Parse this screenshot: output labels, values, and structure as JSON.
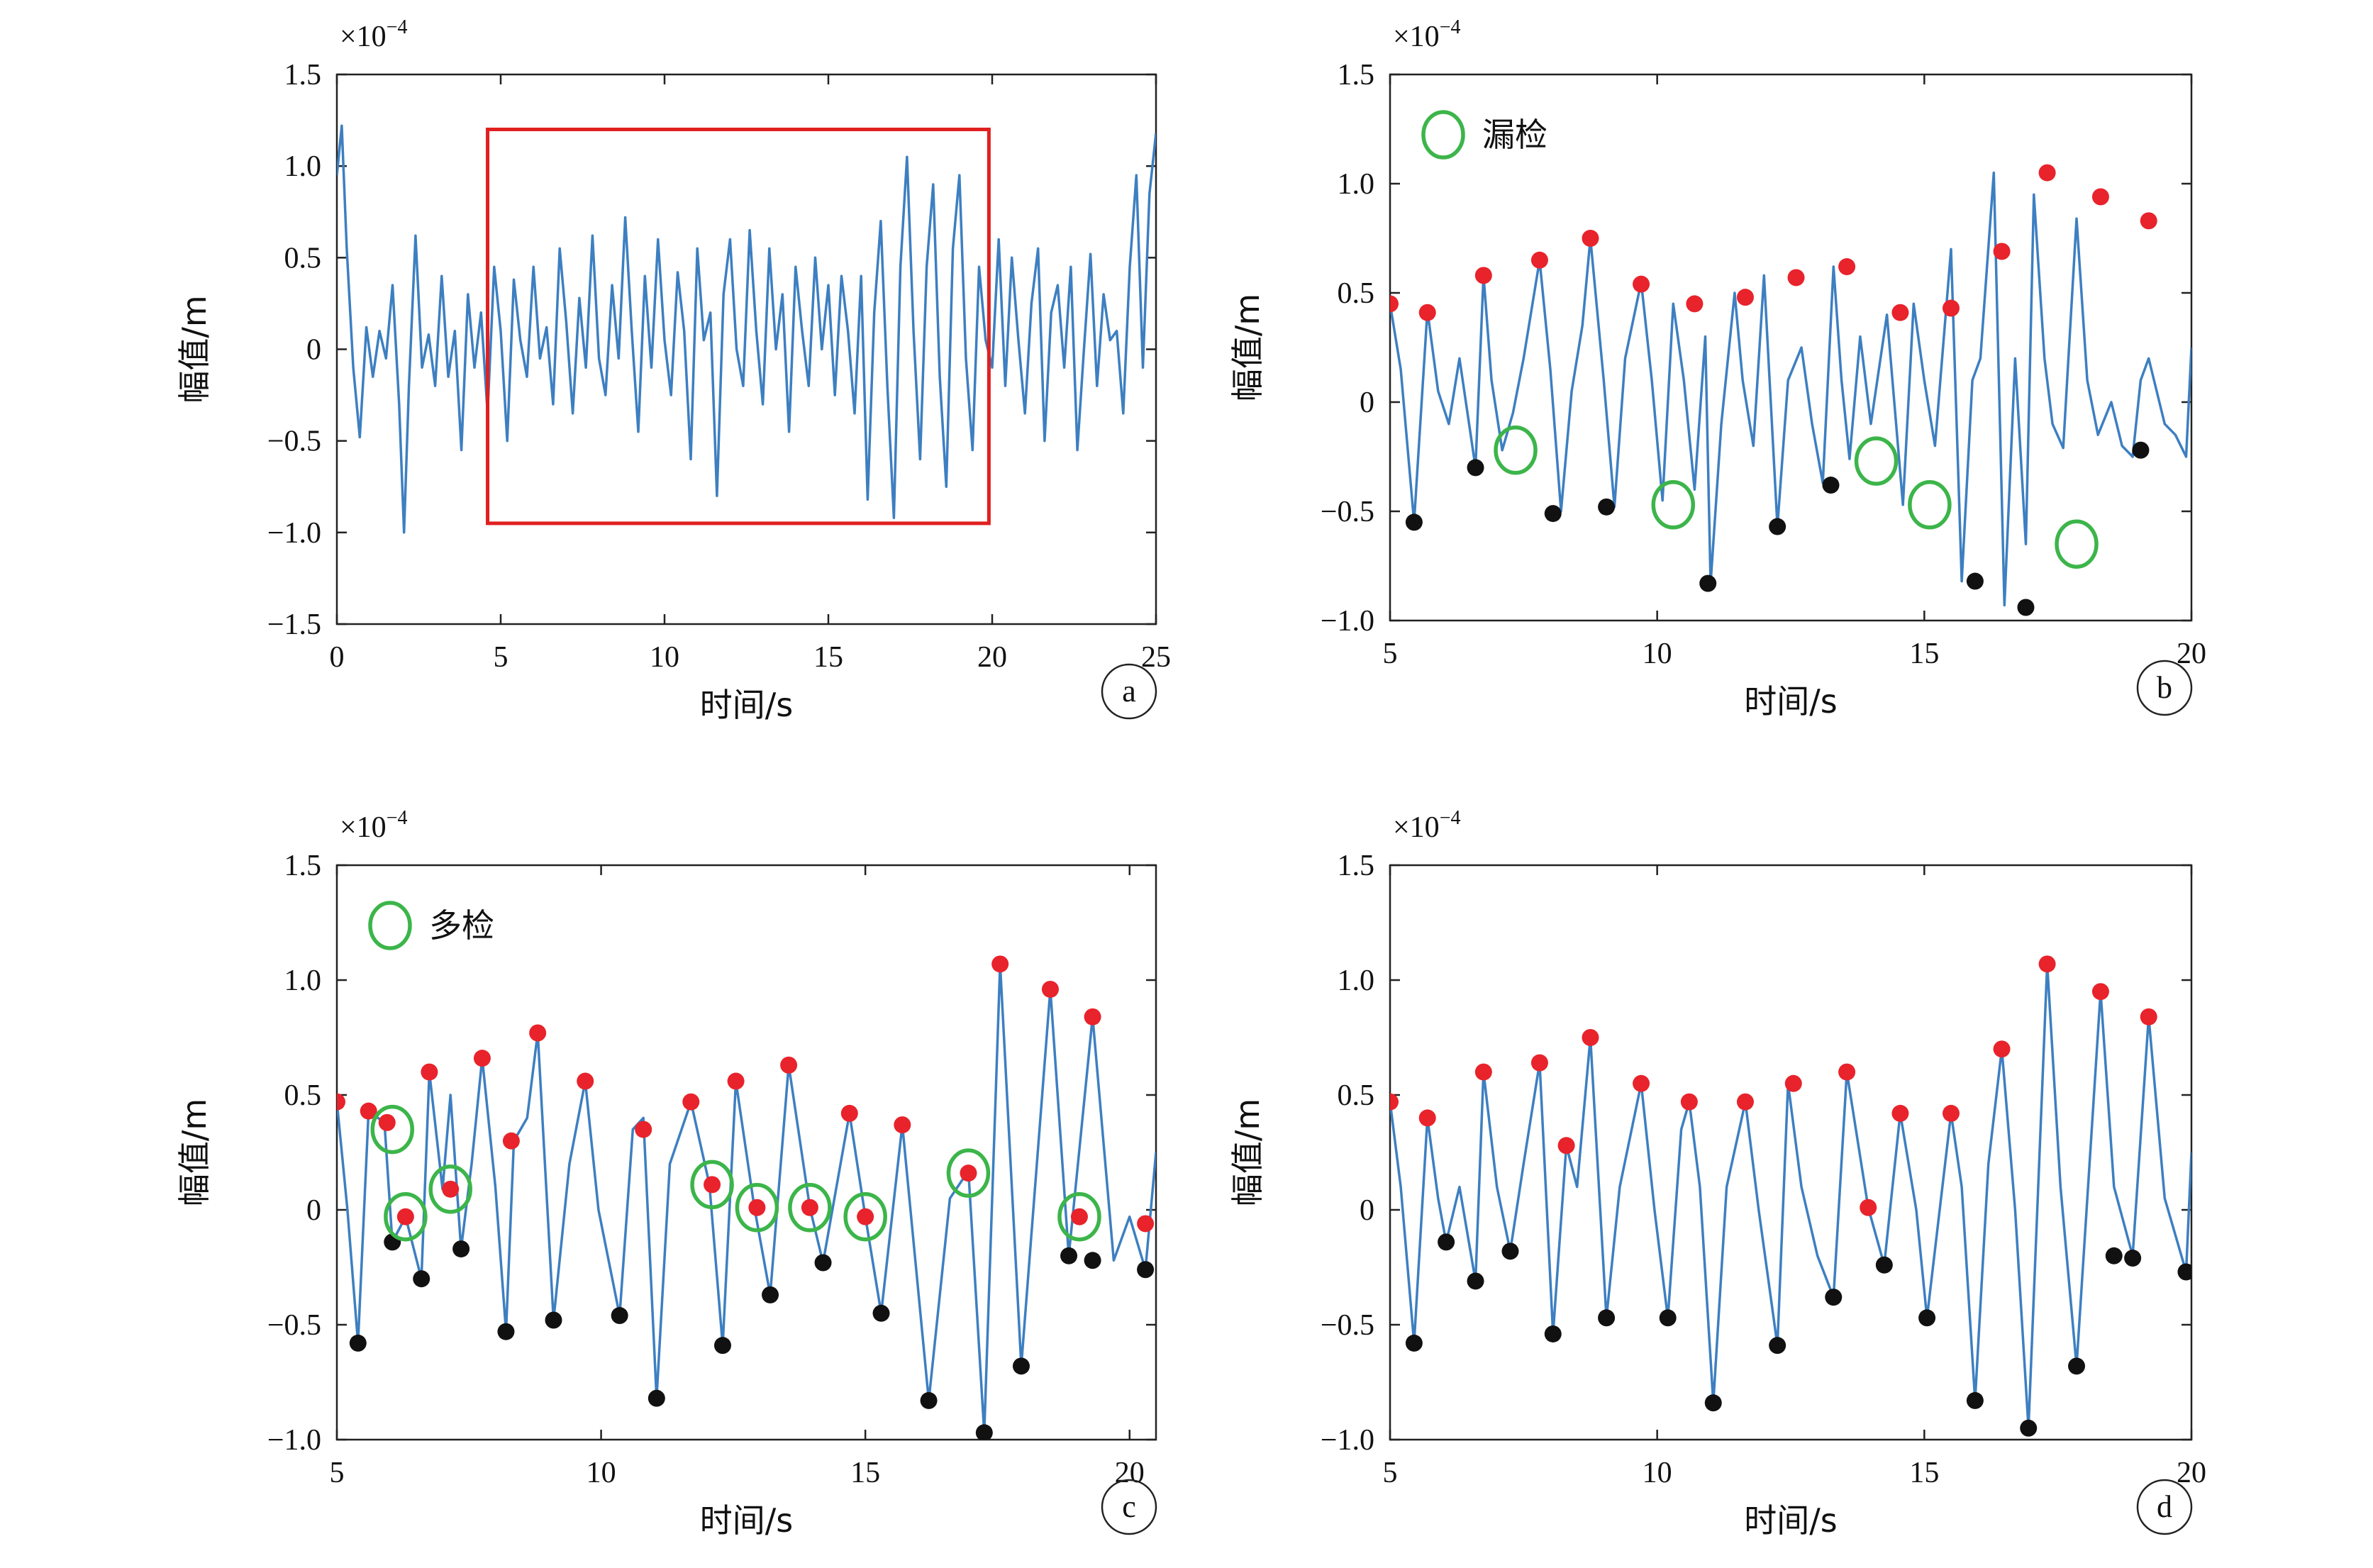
{
  "colors": {
    "signal": "#3d7fc1",
    "peak": "#e8232b",
    "trough": "#111111",
    "marker_ring": "#3cb54a",
    "highlight_box": "#e02020",
    "axis": "#222222"
  },
  "chart_data": [
    {
      "id": "a",
      "type": "line",
      "panel_letter": "a",
      "exponent_label": "×10",
      "exponent_power": "−4",
      "xlabel": "时间/s",
      "ylabel": "幅值/m",
      "xlim": [
        0,
        25
      ],
      "ylim": [
        -1.5,
        1.5
      ],
      "xticks": [
        0,
        5,
        10,
        15,
        20,
        25
      ],
      "xtick_labels": [
        "0",
        "5",
        "10",
        "15",
        "20",
        "25"
      ],
      "yticks": [
        -1.5,
        -1.0,
        -0.5,
        0,
        0.5,
        1.0,
        1.5
      ],
      "ytick_labels": [
        "−1.5",
        "−1.0",
        "−0.5",
        "0",
        "0.5",
        "1.0",
        "1.5"
      ],
      "highlight_box": {
        "x": [
          4.6,
          19.9
        ],
        "y": [
          -0.95,
          1.2
        ]
      },
      "series": [
        {
          "role": "signal",
          "x": [
            0.0,
            0.15,
            0.3,
            0.5,
            0.7,
            0.9,
            1.1,
            1.3,
            1.5,
            1.7,
            1.9,
            2.05,
            2.2,
            2.4,
            2.6,
            2.8,
            3.0,
            3.2,
            3.4,
            3.6,
            3.8,
            4.0,
            4.2,
            4.4,
            4.6,
            4.8,
            5.0,
            5.2,
            5.4,
            5.6,
            5.8,
            6.0,
            6.2,
            6.4,
            6.6,
            6.8,
            7.0,
            7.2,
            7.4,
            7.6,
            7.8,
            8.0,
            8.2,
            8.4,
            8.6,
            8.8,
            9.0,
            9.2,
            9.4,
            9.6,
            9.8,
            10.0,
            10.2,
            10.4,
            10.6,
            10.8,
            11.0,
            11.2,
            11.4,
            11.6,
            11.8,
            12.0,
            12.2,
            12.4,
            12.6,
            12.8,
            13.0,
            13.2,
            13.4,
            13.6,
            13.8,
            14.0,
            14.2,
            14.4,
            14.6,
            14.8,
            15.0,
            15.2,
            15.4,
            15.6,
            15.8,
            16.0,
            16.2,
            16.4,
            16.6,
            16.8,
            17.0,
            17.2,
            17.4,
            17.6,
            17.8,
            18.0,
            18.2,
            18.4,
            18.6,
            18.8,
            19.0,
            19.2,
            19.4,
            19.6,
            19.8,
            20.0,
            20.2,
            20.4,
            20.6,
            20.8,
            21.0,
            21.2,
            21.4,
            21.6,
            21.8,
            22.0,
            22.2,
            22.4,
            22.6,
            22.8,
            23.0,
            23.2,
            23.4,
            23.6,
            23.8,
            24.0,
            24.2,
            24.4,
            24.6,
            24.8,
            25.0
          ],
          "y": [
            0.95,
            1.22,
            0.55,
            -0.1,
            -0.48,
            0.12,
            -0.15,
            0.1,
            -0.05,
            0.35,
            -0.3,
            -1.0,
            -0.2,
            0.62,
            -0.1,
            0.08,
            -0.2,
            0.4,
            -0.15,
            0.1,
            -0.55,
            0.3,
            -0.1,
            0.2,
            -0.35,
            0.45,
            0.1,
            -0.5,
            0.38,
            0.05,
            -0.15,
            0.45,
            -0.05,
            0.12,
            -0.3,
            0.55,
            0.15,
            -0.35,
            0.28,
            -0.1,
            0.62,
            -0.05,
            -0.25,
            0.35,
            -0.05,
            0.72,
            0.1,
            -0.45,
            0.4,
            -0.1,
            0.6,
            0.05,
            -0.25,
            0.42,
            0.1,
            -0.6,
            0.55,
            0.05,
            0.2,
            -0.8,
            0.3,
            0.6,
            0.0,
            -0.2,
            0.65,
            0.1,
            -0.3,
            0.55,
            0.0,
            0.3,
            -0.45,
            0.45,
            0.1,
            -0.2,
            0.5,
            0.0,
            0.35,
            -0.25,
            0.4,
            0.1,
            -0.35,
            0.4,
            -0.82,
            0.2,
            0.7,
            -0.2,
            -0.92,
            0.45,
            1.05,
            0.1,
            -0.6,
            0.45,
            0.9,
            -0.15,
            -0.75,
            0.55,
            0.95,
            -0.05,
            -0.55,
            0.45,
            0.05,
            -0.1,
            0.6,
            -0.2,
            0.5,
            0.05,
            -0.35,
            0.25,
            0.55,
            -0.5,
            0.2,
            0.35,
            -0.1,
            0.45,
            -0.55,
            0.0,
            0.52,
            -0.2,
            0.3,
            0.05,
            0.1,
            -0.35,
            0.45,
            0.95,
            -0.1,
            0.85,
            1.18
          ]
        }
      ]
    },
    {
      "id": "b",
      "type": "line",
      "panel_letter": "b",
      "exponent_label": "×10",
      "exponent_power": "−4",
      "xlabel": "时间/s",
      "ylabel": "幅值/m",
      "legend_text": "漏检",
      "xlim": [
        5,
        20
      ],
      "ylim": [
        -1.0,
        1.5
      ],
      "xticks": [
        5,
        10,
        15,
        20
      ],
      "xtick_labels": [
        "5",
        "10",
        "15",
        "20"
      ],
      "yticks": [
        -1.0,
        -0.5,
        0,
        0.5,
        1.0,
        1.5
      ],
      "ytick_labels": [
        "−1.0",
        "−0.5",
        "0",
        "0.5",
        "1.0",
        "1.5"
      ],
      "signal": {
        "x": [
          5.0,
          5.2,
          5.45,
          5.7,
          5.9,
          6.1,
          6.3,
          6.6,
          6.75,
          6.9,
          7.1,
          7.3,
          7.5,
          7.8,
          8.0,
          8.2,
          8.4,
          8.6,
          8.75,
          9.0,
          9.2,
          9.4,
          9.7,
          9.9,
          10.1,
          10.3,
          10.5,
          10.7,
          10.9,
          11.0,
          11.2,
          11.45,
          11.6,
          11.8,
          12.0,
          12.25,
          12.45,
          12.7,
          12.9,
          13.1,
          13.3,
          13.45,
          13.6,
          13.8,
          14.0,
          14.3,
          14.6,
          14.8,
          15.0,
          15.2,
          15.5,
          15.7,
          15.9,
          16.05,
          16.3,
          16.5,
          16.7,
          16.9,
          17.05,
          17.25,
          17.4,
          17.6,
          17.85,
          18.05,
          18.25,
          18.5,
          18.7,
          18.9,
          19.05,
          19.2,
          19.5,
          19.7,
          19.9,
          20.0
        ],
        "y": [
          0.45,
          0.15,
          -0.55,
          0.42,
          0.05,
          -0.1,
          0.2,
          -0.3,
          0.58,
          0.1,
          -0.22,
          -0.05,
          0.2,
          0.65,
          0.15,
          -0.5,
          0.05,
          0.35,
          0.75,
          0.1,
          -0.48,
          0.2,
          0.55,
          0.1,
          -0.45,
          0.45,
          0.1,
          -0.4,
          0.3,
          -0.83,
          -0.1,
          0.5,
          0.1,
          -0.2,
          0.58,
          -0.57,
          0.1,
          0.25,
          -0.1,
          -0.37,
          0.62,
          0.1,
          -0.26,
          0.3,
          -0.1,
          0.4,
          -0.47,
          0.45,
          0.1,
          -0.2,
          0.7,
          -0.82,
          0.1,
          0.2,
          1.05,
          -0.93,
          0.2,
          -0.65,
          0.95,
          0.2,
          -0.1,
          -0.21,
          0.84,
          0.1,
          -0.15,
          0.0,
          -0.2,
          -0.25,
          0.1,
          0.2,
          -0.1,
          -0.15,
          -0.25,
          0.25
        ]
      },
      "peaks": {
        "x": [
          5.0,
          5.7,
          6.75,
          7.8,
          8.75,
          9.7,
          10.7,
          11.65,
          12.6,
          13.55,
          14.55,
          15.5,
          16.45,
          17.3,
          18.3,
          19.2
        ],
        "y": [
          0.45,
          0.41,
          0.58,
          0.65,
          0.75,
          0.54,
          0.45,
          0.48,
          0.57,
          0.62,
          0.41,
          0.43,
          0.69,
          1.05,
          0.94,
          0.83
        ]
      },
      "troughs": {
        "x": [
          5.45,
          6.6,
          8.05,
          9.05,
          10.95,
          12.25,
          13.25,
          15.95,
          16.9,
          19.05
        ],
        "y": [
          -0.55,
          -0.3,
          -0.51,
          -0.48,
          -0.83,
          -0.57,
          -0.38,
          -0.82,
          -0.94,
          -0.22
        ]
      },
      "rings": {
        "x": [
          7.35,
          10.3,
          14.1,
          15.1,
          17.85
        ],
        "y": [
          -0.22,
          -0.47,
          -0.27,
          -0.47,
          -0.65
        ]
      }
    },
    {
      "id": "c",
      "type": "line",
      "panel_letter": "c",
      "exponent_label": "×10",
      "exponent_power": "−4",
      "xlabel": "时间/s",
      "ylabel": "幅值/m",
      "legend_text": "多检",
      "xlim": [
        5,
        20.5
      ],
      "ylim": [
        -1.0,
        1.5
      ],
      "xticks": [
        5,
        10,
        15,
        20
      ],
      "xtick_labels": [
        "5",
        "10",
        "15",
        "20"
      ],
      "yticks": [
        -1.0,
        -0.5,
        0,
        0.5,
        1.0,
        1.5
      ],
      "ytick_labels": [
        "−1.0",
        "−0.5",
        "0",
        "0.5",
        "1.0",
        "1.5"
      ],
      "signal": {
        "x": [
          5.0,
          5.2,
          5.4,
          5.6,
          5.9,
          6.05,
          6.3,
          6.6,
          6.75,
          7.0,
          7.15,
          7.35,
          7.55,
          7.75,
          8.0,
          8.2,
          8.35,
          8.6,
          8.8,
          9.1,
          9.4,
          9.7,
          9.95,
          10.35,
          10.6,
          10.8,
          11.05,
          11.3,
          11.7,
          12.05,
          12.3,
          12.55,
          12.9,
          13.2,
          13.55,
          13.95,
          14.2,
          14.7,
          15.0,
          15.3,
          15.7,
          16.2,
          16.6,
          16.95,
          17.25,
          17.55,
          17.95,
          18.5,
          18.85,
          19.3,
          19.7,
          20.0,
          20.3,
          20.5
        ],
        "y": [
          0.47,
          0.0,
          -0.58,
          0.43,
          0.38,
          -0.14,
          -0.03,
          -0.3,
          0.6,
          0.09,
          0.5,
          -0.17,
          0.2,
          0.66,
          0.1,
          -0.53,
          0.3,
          0.4,
          0.77,
          -0.48,
          0.2,
          0.56,
          0.0,
          -0.46,
          0.35,
          0.4,
          -0.82,
          0.2,
          0.47,
          0.11,
          -0.59,
          0.56,
          0.01,
          -0.37,
          0.63,
          0.01,
          -0.23,
          0.42,
          -0.03,
          -0.45,
          0.37,
          -0.83,
          0.05,
          0.17,
          -0.97,
          1.07,
          -0.68,
          0.96,
          -0.2,
          0.84,
          -0.22,
          -0.03,
          -0.26,
          0.25
        ]
      },
      "peaks": {
        "x": [
          5.0,
          5.6,
          5.95,
          6.75,
          7.75,
          8.3,
          8.8,
          9.7,
          10.8,
          11.7,
          12.55,
          13.55,
          14.7,
          15.7,
          17.55,
          18.5,
          19.3,
          20.3
        ],
        "y": [
          0.47,
          0.43,
          0.38,
          0.6,
          0.66,
          0.3,
          0.77,
          0.56,
          0.35,
          0.47,
          0.56,
          0.63,
          0.42,
          0.37,
          1.07,
          0.96,
          0.84,
          -0.06
        ]
      },
      "extra_peaks": {
        "x": [
          6.3,
          7.15,
          12.1,
          12.95,
          13.95,
          15.0,
          16.95,
          19.05
        ],
        "y": [
          -0.03,
          0.09,
          0.11,
          0.01,
          0.01,
          -0.03,
          0.16,
          -0.03
        ]
      },
      "troughs": {
        "x": [
          5.4,
          6.05,
          6.6,
          7.35,
          8.2,
          9.1,
          10.35,
          11.05,
          12.3,
          13.2,
          14.2,
          15.3,
          16.2,
          17.25,
          17.95,
          18.85,
          19.3,
          20.3
        ],
        "y": [
          -0.58,
          -0.14,
          -0.3,
          -0.17,
          -0.53,
          -0.48,
          -0.46,
          -0.82,
          -0.59,
          -0.37,
          -0.23,
          -0.45,
          -0.83,
          -0.97,
          -0.68,
          -0.2,
          -0.22,
          -0.26
        ]
      },
      "rings": {
        "x": [
          6.05,
          6.3,
          7.15,
          12.1,
          12.95,
          13.95,
          15.0,
          16.95,
          19.05
        ],
        "y": [
          0.35,
          -0.03,
          0.09,
          0.11,
          0.01,
          0.01,
          -0.03,
          0.16,
          -0.03
        ]
      }
    },
    {
      "id": "d",
      "type": "line",
      "panel_letter": "d",
      "exponent_label": "×10",
      "exponent_power": "−4",
      "xlabel": "时间/s",
      "ylabel": "幅值/m",
      "xlim": [
        5,
        20
      ],
      "ylim": [
        -1.0,
        1.5
      ],
      "xticks": [
        5,
        10,
        15,
        20
      ],
      "xtick_labels": [
        "5",
        "10",
        "15",
        "20"
      ],
      "yticks": [
        -1.0,
        -0.5,
        0,
        0.5,
        1.0,
        1.5
      ],
      "ytick_labels": [
        "−1.0",
        "−0.5",
        "0",
        "0.5",
        "1.0",
        "1.5"
      ],
      "signal": {
        "x": [
          5.0,
          5.2,
          5.45,
          5.7,
          5.9,
          6.05,
          6.3,
          6.6,
          6.75,
          7.0,
          7.25,
          7.5,
          7.8,
          8.05,
          8.3,
          8.5,
          8.75,
          9.05,
          9.3,
          9.7,
          9.95,
          10.2,
          10.45,
          10.6,
          10.8,
          11.05,
          11.3,
          11.65,
          11.9,
          12.25,
          12.45,
          12.7,
          13.0,
          13.3,
          13.55,
          13.95,
          14.25,
          14.55,
          14.85,
          15.05,
          15.5,
          15.7,
          15.95,
          16.2,
          16.45,
          16.7,
          16.95,
          17.3,
          17.55,
          17.85,
          18.3,
          18.55,
          18.9,
          19.2,
          19.5,
          19.9,
          20.0
        ],
        "y": [
          0.47,
          0.1,
          -0.58,
          0.4,
          0.05,
          -0.14,
          0.1,
          -0.31,
          0.6,
          0.1,
          -0.18,
          0.2,
          0.64,
          -0.54,
          0.28,
          0.1,
          0.75,
          -0.47,
          0.1,
          0.55,
          0.0,
          -0.47,
          0.35,
          0.47,
          0.1,
          -0.84,
          0.1,
          0.47,
          0.0,
          -0.59,
          0.55,
          0.1,
          -0.2,
          -0.38,
          0.6,
          0.01,
          -0.24,
          0.42,
          0.0,
          -0.47,
          0.42,
          0.1,
          -0.83,
          0.2,
          0.7,
          0.0,
          -0.95,
          1.07,
          0.1,
          -0.68,
          0.95,
          0.1,
          -0.2,
          0.84,
          0.05,
          -0.27,
          0.25
        ]
      },
      "peaks": {
        "x": [
          5.0,
          5.7,
          6.75,
          7.8,
          8.3,
          8.75,
          9.7,
          10.6,
          11.65,
          12.55,
          13.55,
          13.95,
          14.55,
          15.5,
          16.45,
          17.3,
          18.3,
          19.2
        ],
        "y": [
          0.47,
          0.4,
          0.6,
          0.64,
          0.28,
          0.75,
          0.55,
          0.47,
          0.47,
          0.55,
          0.6,
          0.01,
          0.42,
          0.42,
          0.7,
          1.07,
          0.95,
          0.84
        ]
      },
      "troughs": {
        "x": [
          5.45,
          6.05,
          6.6,
          7.25,
          8.05,
          9.05,
          10.2,
          11.05,
          12.25,
          13.3,
          14.25,
          15.05,
          15.95,
          16.95,
          17.85,
          18.55,
          18.9,
          19.9
        ],
        "y": [
          -0.58,
          -0.14,
          -0.31,
          -0.18,
          -0.54,
          -0.47,
          -0.47,
          -0.84,
          -0.59,
          -0.38,
          -0.24,
          -0.47,
          -0.83,
          -0.95,
          -0.68,
          -0.2,
          -0.21,
          -0.27
        ]
      }
    }
  ]
}
